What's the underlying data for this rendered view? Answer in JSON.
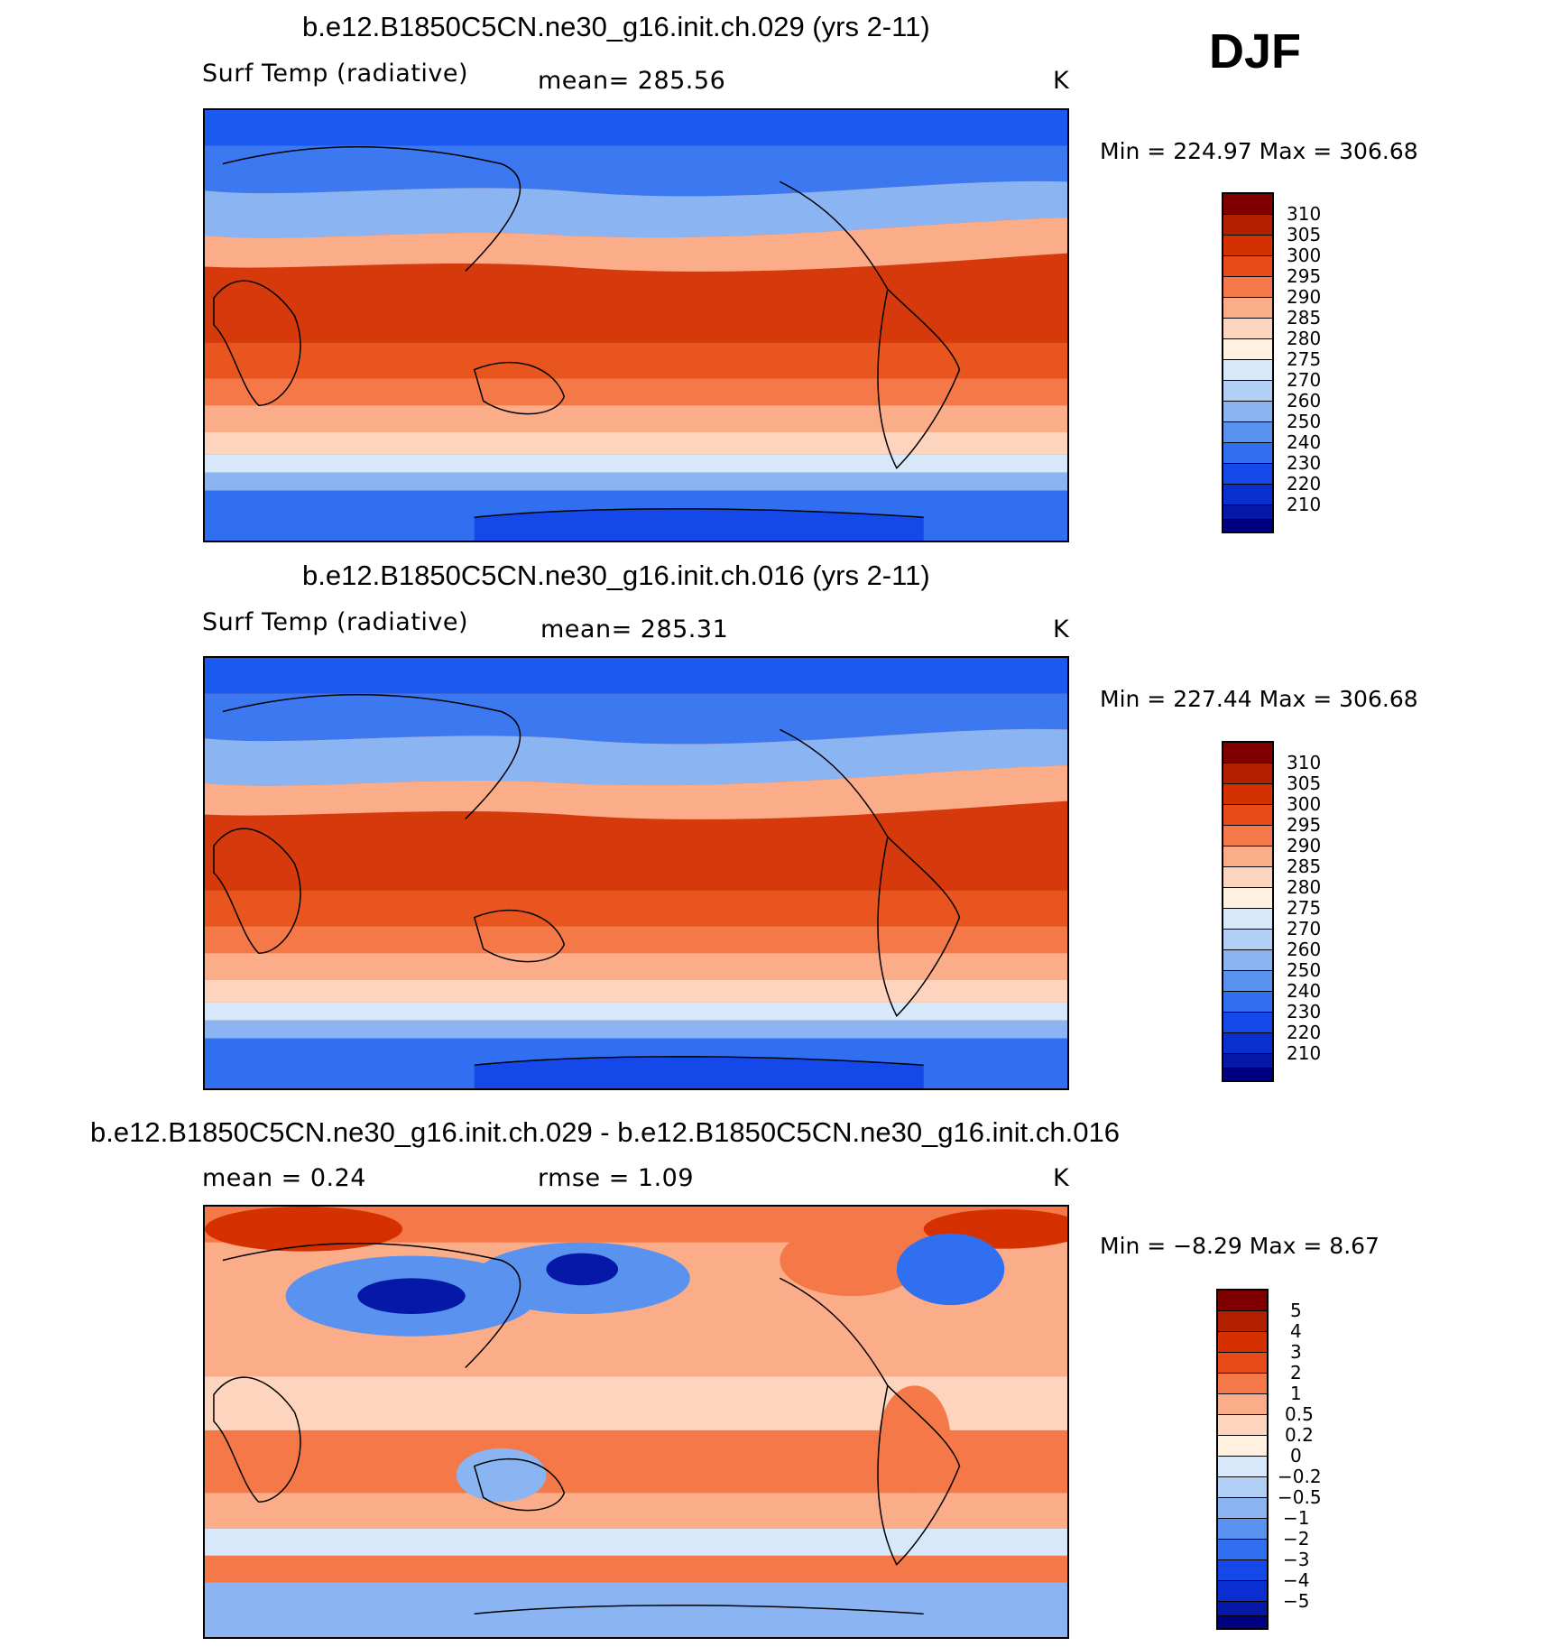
{
  "season": "DJF",
  "units": "K",
  "panels": [
    {
      "title": "b.e12.B1850C5CN.ne30_g16.init.ch.029 (yrs 2-11)",
      "variable": "Surf Temp (radiative)",
      "mean_text": "mean=  285.56",
      "units": "K",
      "minmax_text": "Min  =  224.97  Max  =  306.68",
      "colorbar": {
        "colors": [
          "#800000",
          "#b22000",
          "#d43000",
          "#e84a18",
          "#f57848",
          "#fbac88",
          "#fdd5be",
          "#fff0e0",
          "#d6e8fa",
          "#b2d0f5",
          "#8ab4f2",
          "#5a92f0",
          "#2f6ff0",
          "#1448e8",
          "#0a2ed0",
          "#0618a8",
          "#000080"
        ],
        "labels": [
          "310",
          "305",
          "300",
          "295",
          "290",
          "285",
          "280",
          "275",
          "270",
          "260",
          "250",
          "240",
          "230",
          "220",
          "210"
        ]
      }
    },
    {
      "title": "b.e12.B1850C5CN.ne30_g16.init.ch.016 (yrs 2-11)",
      "variable": "Surf Temp (radiative)",
      "mean_text": "mean=  285.31",
      "units": "K",
      "minmax_text": "Min  =  227.44  Max  =  306.68",
      "colorbar": {
        "colors": [
          "#800000",
          "#b22000",
          "#d43000",
          "#e84a18",
          "#f57848",
          "#fbac88",
          "#fdd5be",
          "#fff0e0",
          "#d6e8fa",
          "#b2d0f5",
          "#8ab4f2",
          "#5a92f0",
          "#2f6ff0",
          "#1448e8",
          "#0a2ed0",
          "#0618a8",
          "#000080"
        ],
        "labels": [
          "310",
          "305",
          "300",
          "295",
          "290",
          "285",
          "280",
          "275",
          "270",
          "260",
          "250",
          "240",
          "230",
          "220",
          "210"
        ]
      }
    },
    {
      "title": "b.e12.B1850C5CN.ne30_g16.init.ch.029 - b.e12.B1850C5CN.ne30_g16.init.ch.016",
      "mean_text": "mean  =     0.24",
      "rmse_text": "rmse  =     1.09",
      "units": "K",
      "minmax_text": "Min  =    −8.29  Max  =     8.67",
      "colorbar": {
        "colors": [
          "#800000",
          "#b22000",
          "#d43000",
          "#e84a18",
          "#f57848",
          "#fbac88",
          "#fdd5be",
          "#fff0e0",
          "#d6e8fa",
          "#b2d0f5",
          "#8ab4f2",
          "#5a92f0",
          "#2f6ff0",
          "#1448e8",
          "#0a2ed0",
          "#0618a8",
          "#000080"
        ],
        "labels": [
          "5",
          "4",
          "3",
          "2",
          "1",
          "0.5",
          "0.2",
          "0",
          "−0.2",
          "−0.5",
          "−1",
          "−2",
          "−3",
          "−4",
          "−5"
        ]
      }
    }
  ]
}
